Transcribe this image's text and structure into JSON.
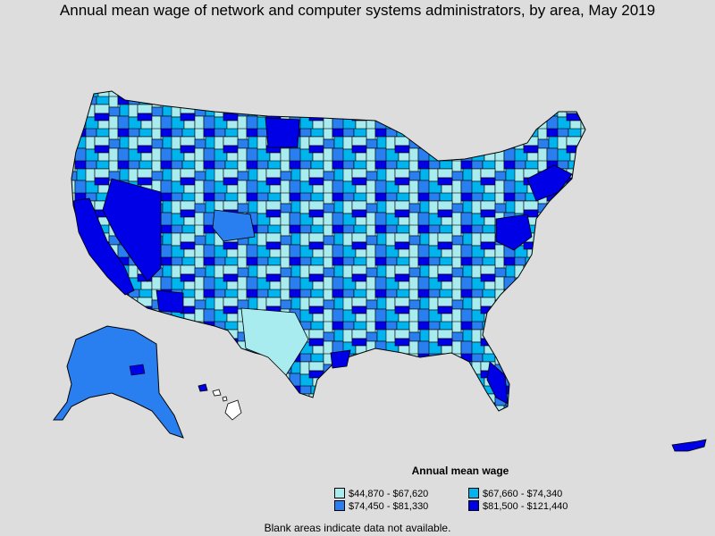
{
  "title": "Annual mean wage of network and computer systems administrators, by area, May 2019",
  "legend": {
    "title": "Annual mean wage",
    "items": [
      {
        "label": "$44,870 - $67,620",
        "color": "#a8ecf0"
      },
      {
        "label": "$67,660 - $74,340",
        "color": "#00b4f0"
      },
      {
        "label": "$74,450 - $81,330",
        "color": "#2a7ff0"
      },
      {
        "label": "$81,500 - $121,440",
        "color": "#0000e6"
      }
    ]
  },
  "note": "Blank areas indicate data not available.",
  "colors": {
    "background": "#dddddd",
    "no_data": "#ffffff",
    "border": "#000000"
  }
}
